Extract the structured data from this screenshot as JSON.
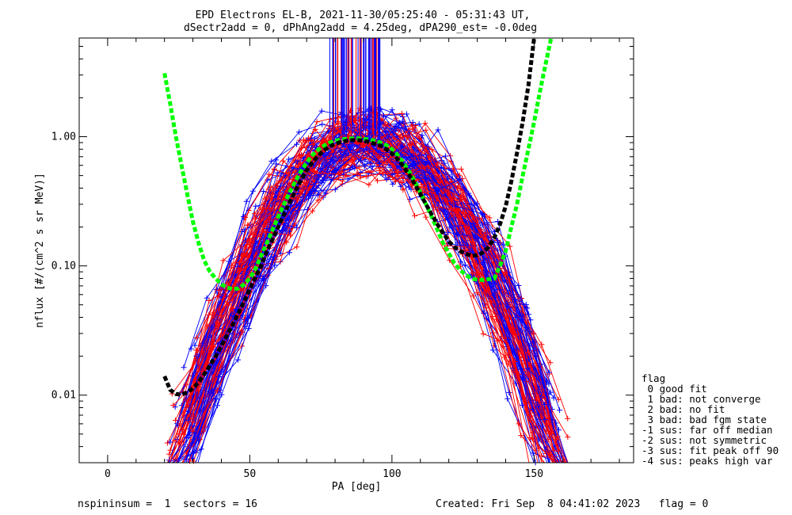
{
  "chart_data": {
    "type": "line",
    "title_line1": "EPD Electrons EL-B, 2021-11-30/05:25:40 - 05:31:43 UT,",
    "title_line2": "dSectr2add = 0, dPhAng2add = 4.25deg, dPA290_est=  -0.0deg",
    "xlabel": "PA [deg]",
    "ylabel": "nflux [#/(cm^2 s sr MeV)]",
    "xlim": [
      -10,
      185
    ],
    "ylim": [
      0.003,
      5.8
    ],
    "y_scale": "log",
    "x_ticks": [
      0,
      50,
      100,
      150
    ],
    "x_tick_labels": [
      "0",
      "50",
      "100",
      "150"
    ],
    "y_ticks": [
      0.01,
      0.1,
      1.0
    ],
    "y_tick_labels": [
      "0.01",
      "0.10",
      "1.00"
    ],
    "series_colors": {
      "even": "#0000ff",
      "odd": "#ff0000"
    },
    "fit_colors": {
      "fit_a": "#00ff00",
      "fit_b": "#000000"
    },
    "fit_a": {
      "x": [
        20,
        22,
        24,
        26,
        28,
        30,
        32,
        34,
        36,
        38,
        40,
        42,
        44,
        46,
        48,
        50,
        52,
        54,
        56,
        58,
        60,
        62,
        64,
        66,
        68,
        70,
        72,
        74,
        76,
        78,
        80,
        82,
        84,
        86,
        88,
        90,
        92,
        94,
        96,
        98,
        100,
        102,
        104,
        106,
        108,
        110,
        112,
        114,
        116,
        118,
        120,
        122,
        124,
        126,
        128,
        130,
        132,
        134,
        136,
        138,
        140,
        142,
        144,
        146,
        148,
        150,
        152,
        154,
        156
      ],
      "y": [
        3.1,
        1.8,
        1.0,
        0.6,
        0.36,
        0.22,
        0.15,
        0.11,
        0.09,
        0.08,
        0.072,
        0.068,
        0.066,
        0.067,
        0.072,
        0.08,
        0.095,
        0.12,
        0.15,
        0.19,
        0.24,
        0.3,
        0.37,
        0.45,
        0.54,
        0.63,
        0.72,
        0.79,
        0.85,
        0.9,
        0.93,
        0.95,
        0.96,
        0.97,
        0.97,
        0.96,
        0.95,
        0.93,
        0.9,
        0.86,
        0.8,
        0.72,
        0.63,
        0.54,
        0.45,
        0.37,
        0.3,
        0.24,
        0.19,
        0.15,
        0.125,
        0.105,
        0.093,
        0.085,
        0.08,
        0.078,
        0.078,
        0.079,
        0.08,
        0.1,
        0.13,
        0.2,
        0.3,
        0.5,
        0.8,
        1.3,
        2.2,
        3.6,
        5.8
      ]
    },
    "fit_b": {
      "x": [
        20,
        22,
        24,
        26,
        28,
        30,
        32,
        34,
        36,
        38,
        40,
        42,
        44,
        46,
        48,
        50,
        52,
        54,
        56,
        58,
        60,
        62,
        64,
        66,
        68,
        70,
        72,
        74,
        76,
        78,
        80,
        82,
        84,
        86,
        88,
        90,
        92,
        94,
        96,
        98,
        100,
        102,
        104,
        106,
        108,
        110,
        112,
        114,
        116,
        118,
        120,
        122,
        124,
        126,
        128,
        130,
        132,
        134,
        136,
        138,
        140,
        142,
        144,
        146,
        148,
        150
      ],
      "y": [
        0.014,
        0.011,
        0.0102,
        0.0101,
        0.0105,
        0.0113,
        0.0126,
        0.0145,
        0.017,
        0.02,
        0.024,
        0.029,
        0.035,
        0.043,
        0.053,
        0.066,
        0.082,
        0.1,
        0.13,
        0.16,
        0.2,
        0.25,
        0.31,
        0.38,
        0.46,
        0.55,
        0.63,
        0.71,
        0.78,
        0.84,
        0.88,
        0.91,
        0.93,
        0.94,
        0.94,
        0.93,
        0.91,
        0.88,
        0.85,
        0.8,
        0.74,
        0.67,
        0.59,
        0.51,
        0.43,
        0.36,
        0.3,
        0.25,
        0.21,
        0.18,
        0.155,
        0.14,
        0.13,
        0.124,
        0.12,
        0.121,
        0.127,
        0.14,
        0.165,
        0.21,
        0.29,
        0.45,
        0.75,
        1.3,
        2.5,
        5.8
      ]
    },
    "legend": {
      "title": "flag",
      "entries": [
        " 0 good fit",
        " 1 bad: not converge",
        " 2 bad: no fit",
        " 3 bad: bad fgm state",
        "-1 sus: far off median",
        "-2 sus: not symmetric",
        "-3 sus: fit peak off 90",
        "-4 sus: peaks high var"
      ]
    },
    "footer_left": "nspininsum =  1  sectors = 16",
    "footer_right": "Created: Fri Sep  8 04:41:02 2023   flag = 0"
  }
}
